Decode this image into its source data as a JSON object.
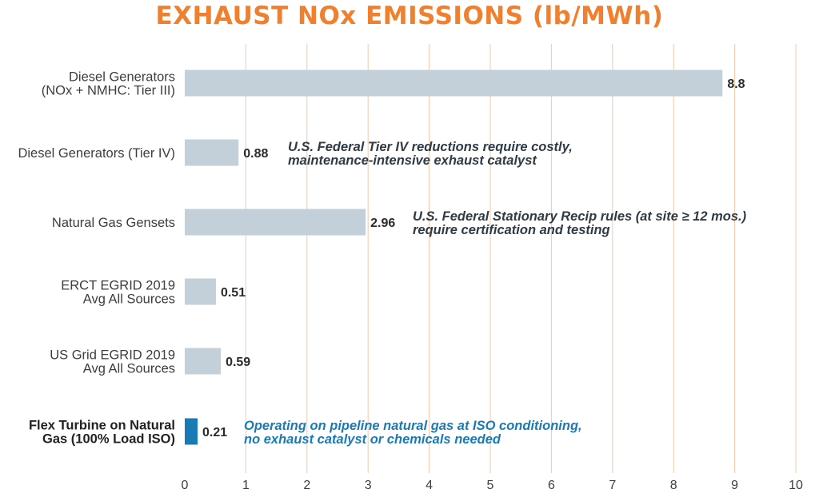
{
  "chart_data": {
    "type": "bar",
    "orientation": "horizontal",
    "title": "EXHAUST NOx EMISSIONS (lb/MWh)",
    "categories": [
      [
        "Diesel Generators",
        "(NOx + NMHC: Tier III)"
      ],
      [
        "Diesel Generators (Tier IV)"
      ],
      [
        "Natural Gas Gensets"
      ],
      [
        "ERCT EGRID 2019",
        "Avg All Sources"
      ],
      [
        "US Grid EGRID 2019",
        "Avg All Sources"
      ],
      [
        "Flex Turbine on Natural",
        "Gas (100% Load ISO)"
      ]
    ],
    "values": [
      8.8,
      0.88,
      2.96,
      0.51,
      0.59,
      0.21
    ],
    "value_labels": [
      "8.8",
      "0.88",
      "2.96",
      "0.51",
      "0.59",
      "0.21"
    ],
    "highlight_index": 5,
    "xlim": [
      0,
      10
    ],
    "xticks": [
      "0",
      "1",
      "2",
      "3",
      "4",
      "5",
      "6",
      "7",
      "8",
      "9",
      "10"
    ],
    "grid": true,
    "colors": {
      "bar": "#c3d0d9",
      "highlight_bar": "#1a7ab5",
      "grid": "#f3c9a6",
      "title": "#f07f2e",
      "note_dark": "#2e3a44",
      "note_blue": "#1a7ab5"
    },
    "annotations": [
      {
        "bar_index": 1,
        "lines": [
          "U.S. Federal Tier IV reductions require costly,",
          "maintenance-intensive exhaust catalyst"
        ],
        "color": "#2e3a44"
      },
      {
        "bar_index": 2,
        "lines": [
          "U.S. Federal Stationary Recip rules (at site ≥ 12 mos.)",
          "require certification and testing"
        ],
        "color": "#2e3a44"
      },
      {
        "bar_index": 5,
        "lines": [
          "Operating on pipeline natural gas at ISO conditioning,",
          "no exhaust catalyst or chemicals needed"
        ],
        "color": "#1a7ab5"
      }
    ]
  }
}
